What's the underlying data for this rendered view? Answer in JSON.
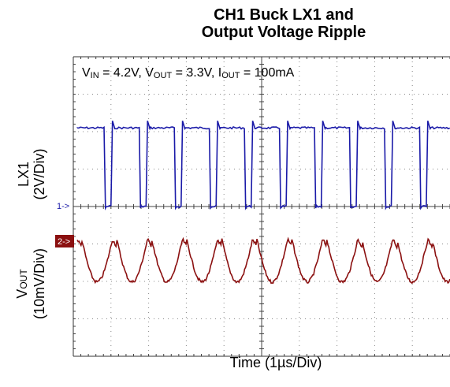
{
  "chart_data": {
    "type": "line",
    "title_line1": "CH1 Buck LX1 and",
    "title_line2": "Output Voltage Ripple",
    "conditions": {
      "vin_base": "V",
      "vin_sub": "IN",
      "vin_val": " = 4.2V, ",
      "vout_base": "V",
      "vout_sub": "OUT",
      "vout_val": " = 3.3V, ",
      "iout_base": "I",
      "iout_sub": "OUT",
      "iout_val": " = 100mA"
    },
    "xlabel": "Time (1µs/Div)",
    "ylabel_lx1_name": "LX1",
    "ylabel_lx1_scale": "(2V/Div)",
    "ylabel_vout_base": "V",
    "ylabel_vout_sub": "OUT",
    "ylabel_vout_scale": "(10mV/Div)",
    "grid": true,
    "x_divisions": 10,
    "y_divisions": 8,
    "markers": [
      {
        "label": "1->",
        "channel": "LX1",
        "level_div": 0
      },
      {
        "label": "2->",
        "channel": "VOUT",
        "level_div": 0
      }
    ],
    "series": [
      {
        "name": "LX1",
        "color": "#1a1aa8",
        "unit": "V",
        "high_v": 4.2,
        "low_v": 0,
        "period_us": 0.93,
        "duty": 0.8,
        "first_fall_us": 0.75
      },
      {
        "name": "VOUT",
        "color": "#8b1010",
        "unit": "mV",
        "max_mV": 0.5,
        "min_mV": -11.5,
        "period_us": 0.93
      }
    ],
    "colors": {
      "lx1": "#1a1aa8",
      "vout": "#8b1010",
      "marker2_bg": "#8b1010"
    }
  }
}
